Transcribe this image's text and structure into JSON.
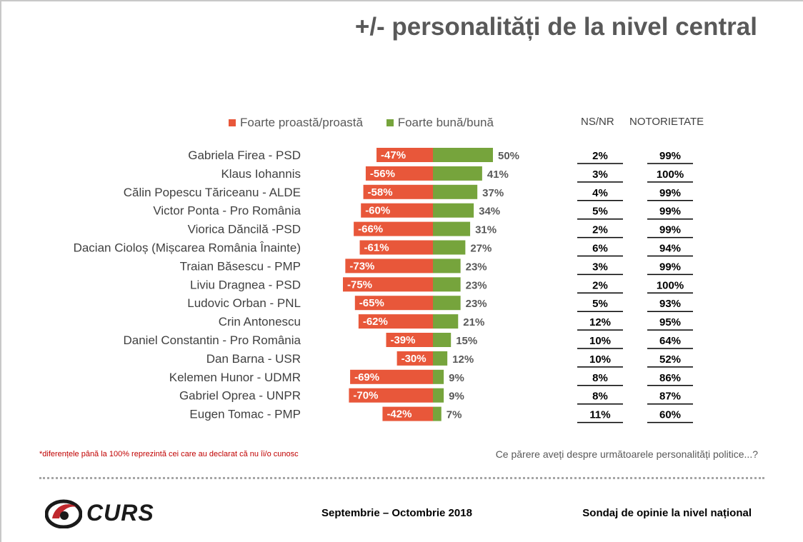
{
  "title": "+/- personalități de la nivel central",
  "legend": {
    "negative": "Foarte proastă/proastă",
    "positive": "Foarte bună/bună"
  },
  "columns": {
    "nsnr": "NS/NR",
    "notorietate": "NOTORIETATE"
  },
  "colors": {
    "negative": "#e8573a",
    "positive": "#76a43c",
    "text": "#595959"
  },
  "chart_data": {
    "type": "bar",
    "categories": [
      "Gabriela Firea - PSD",
      "Klaus Iohannis",
      "Călin Popescu Tăriceanu - ALDE",
      "Victor Ponta - Pro România",
      "Viorica Dăncilă -PSD",
      "Dacian Cioloș (Mișcarea România Înainte)",
      "Traian Băsescu - PMP",
      "Liviu Dragnea - PSD",
      "Ludovic Orban - PNL",
      "Crin Antonescu",
      "Daniel Constantin - Pro România",
      "Dan Barna - USR",
      "Kelemen Hunor - UDMR",
      "Gabriel Oprea - UNPR",
      "Eugen Tomac - PMP"
    ],
    "series": [
      {
        "name": "Foarte proastă/proastă",
        "values": [
          -47,
          -56,
          -58,
          -60,
          -66,
          -61,
          -73,
          -75,
          -65,
          -62,
          -39,
          -30,
          -69,
          -70,
          -42
        ]
      },
      {
        "name": "Foarte bună/bună",
        "values": [
          50,
          41,
          37,
          34,
          31,
          27,
          23,
          23,
          23,
          21,
          15,
          12,
          9,
          9,
          7
        ]
      }
    ],
    "nsnr": [
      "2%",
      "3%",
      "4%",
      "5%",
      "2%",
      "6%",
      "3%",
      "2%",
      "5%",
      "12%",
      "10%",
      "10%",
      "8%",
      "8%",
      "11%"
    ],
    "notorietate": [
      "99%",
      "100%",
      "99%",
      "99%",
      "99%",
      "94%",
      "99%",
      "100%",
      "93%",
      "95%",
      "64%",
      "52%",
      "86%",
      "87%",
      "60%"
    ]
  },
  "footnote": "*diferențele până la 100% reprezintă cei care au declarat că nu îi/o cunosc",
  "question": "Ce părere aveți despre următoarele personalități politice...?",
  "footer": {
    "logo_text": "CURS",
    "period": "Septembrie – Octombrie 2018",
    "survey": "Sondaj de opinie la nivel național"
  }
}
